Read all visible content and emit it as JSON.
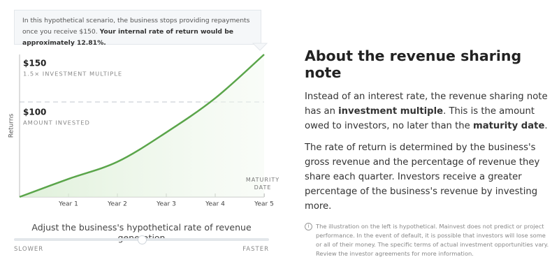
{
  "tooltip": [
    {
      "text": "In this hypothetical scenario, the business stops providing repayments once you receive $150. "
    },
    {
      "text": "Your internal rate of return would be approximately 12.81%.",
      "bold": true
    }
  ],
  "chart_data": {
    "type": "line",
    "y_label": "Returns",
    "categories": [
      null,
      "Year 1",
      "Year 2",
      "Year 3",
      "Year 4",
      "Year 5"
    ],
    "values": [
      0,
      19,
      37,
      68,
      104,
      150
    ],
    "color": "#5aa54a",
    "ylim": [
      0,
      150
    ],
    "annotations": [
      {
        "value": 150,
        "label": "$150",
        "note": "1.5× INVESTMENT MULTIPLE"
      },
      {
        "value": 100,
        "label": "$100",
        "note": "AMOUNT INVESTED",
        "dashed": true
      }
    ],
    "end_label": "MATURITY DATE"
  },
  "slider": {
    "title": "Adjust the business's hypothetical rate of revenue generation",
    "min_label": "SLOWER",
    "max_label": "FASTER"
  },
  "article": {
    "heading": "About the revenue sharing note",
    "paragraphs": [
      [
        {
          "text": "Instead of an interest rate, the revenue sharing note has an "
        },
        {
          "text": "investment multiple",
          "bold": true
        },
        {
          "text": ". This is the amount owed to investors, no later than the "
        },
        {
          "text": "maturity date",
          "bold": true
        },
        {
          "text": "."
        }
      ],
      [
        {
          "text": "The rate of return is determined by the business's gross revenue and the percentage of revenue they share each quarter. Investors receive a greater percentage of the business's revenue by investing more."
        }
      ]
    ],
    "disclaimer": "The illustration on the left is hypothetical. Mainvest does not predict or project performance. In the event of default, it is possible that investors will lose some or all of their money. The specific terms of actual investment opportunities vary. Review the investor agreements for more information."
  }
}
